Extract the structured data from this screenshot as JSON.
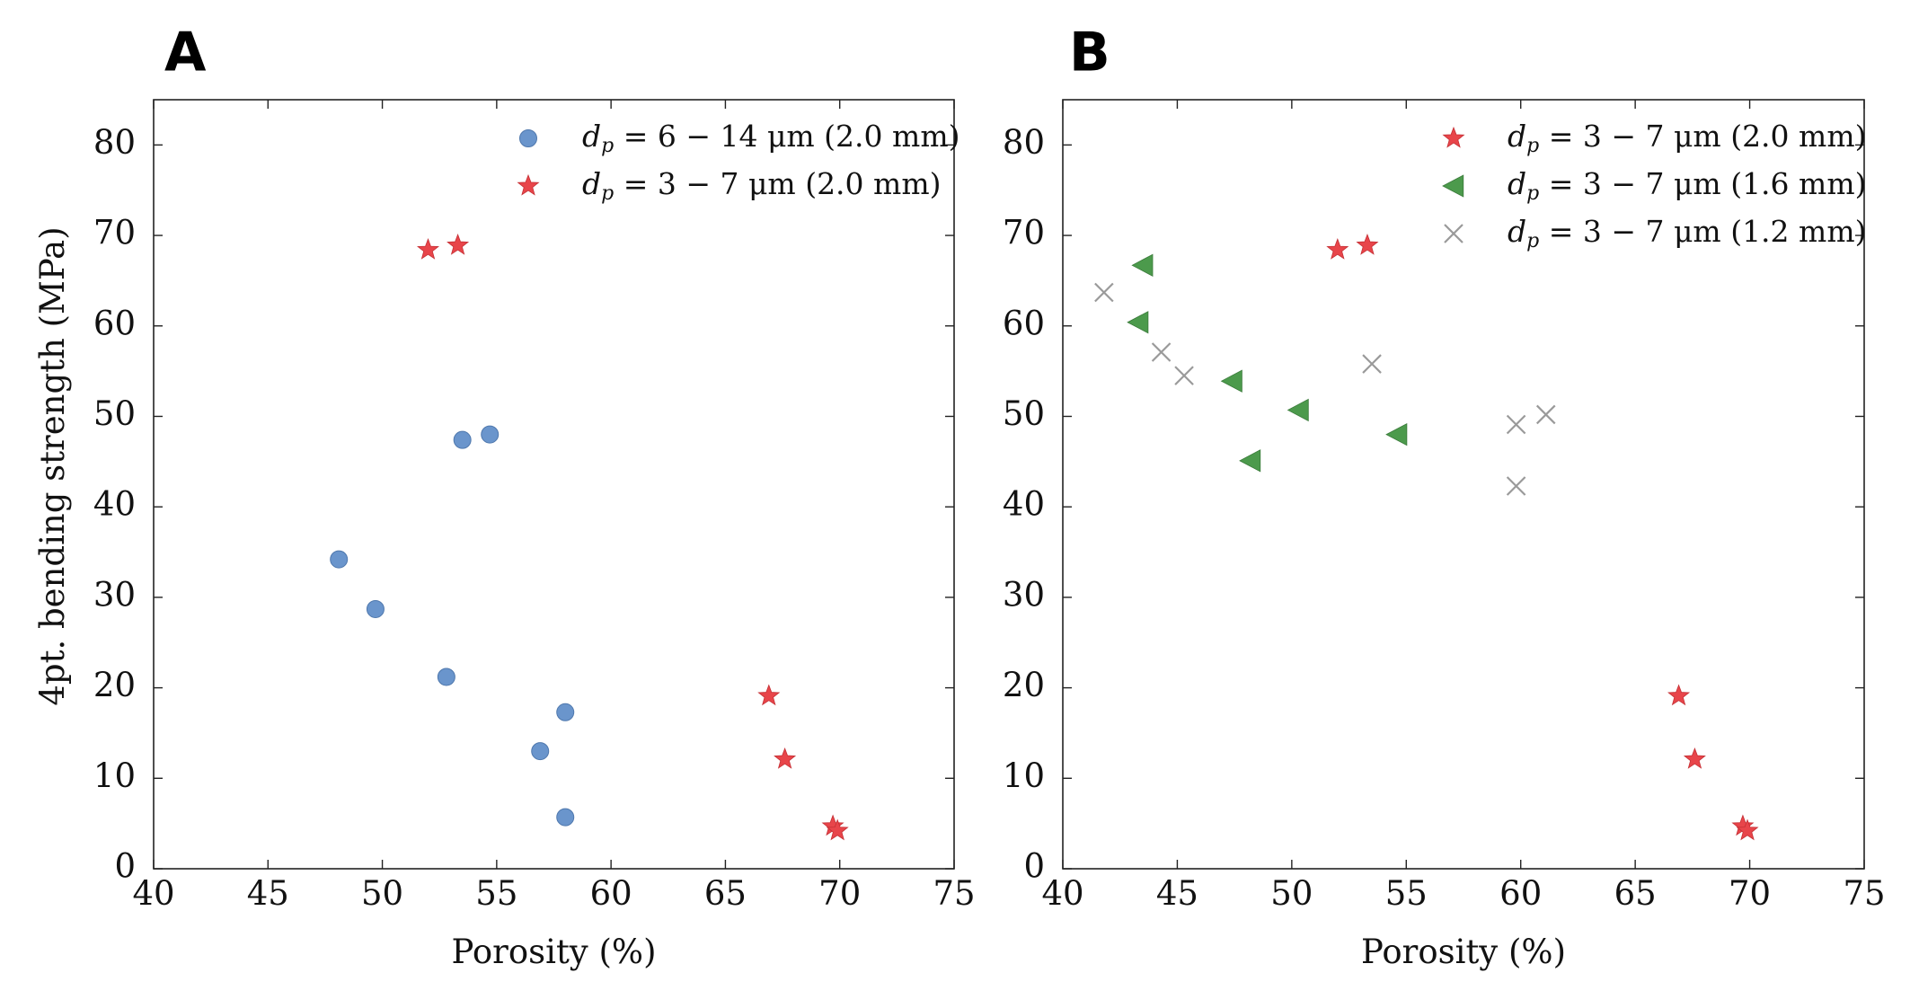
{
  "chart_data": [
    {
      "type": "scatter",
      "panel_label": "A",
      "xlabel": "Porosity (%)",
      "ylabel": "4pt. bending strength (MPa)",
      "xlim": [
        40,
        75
      ],
      "ylim": [
        0,
        85
      ],
      "xticks": [
        40,
        45,
        50,
        55,
        60,
        65,
        70,
        75
      ],
      "yticks": [
        0,
        10,
        20,
        30,
        40,
        50,
        60,
        70,
        80
      ],
      "grid": false,
      "legend_position": "top-right",
      "series": [
        {
          "name": "d_p = 6 − 14 μm (2.0 mm)",
          "legend_parts": {
            "symbol": "d",
            "sub": "p",
            "rest": " = 6 − 14 μm (2.0 mm)"
          },
          "marker": "circle",
          "color": "#6a95cc",
          "points": [
            [
              48.1,
              34.2
            ],
            [
              49.7,
              28.7
            ],
            [
              52.8,
              21.2
            ],
            [
              53.5,
              47.4
            ],
            [
              54.7,
              48.0
            ],
            [
              56.9,
              13.0
            ],
            [
              58.0,
              17.3
            ],
            [
              58.0,
              5.7
            ]
          ]
        },
        {
          "name": "d_p = 3 − 7 μm (2.0 mm)",
          "legend_parts": {
            "symbol": "d",
            "sub": "p",
            "rest": " = 3 − 7 μm (2.0 mm)"
          },
          "marker": "star",
          "color": "#e8454a",
          "points": [
            [
              52.0,
              68.4
            ],
            [
              53.3,
              68.9
            ],
            [
              66.9,
              19.1
            ],
            [
              67.6,
              12.1
            ],
            [
              69.7,
              4.7
            ],
            [
              69.9,
              4.2
            ]
          ]
        }
      ]
    },
    {
      "type": "scatter",
      "panel_label": "B",
      "xlabel": "Porosity (%)",
      "ylabel": "",
      "xlim": [
        40,
        75
      ],
      "ylim": [
        0,
        85
      ],
      "xticks": [
        40,
        45,
        50,
        55,
        60,
        65,
        70,
        75
      ],
      "yticks": [
        0,
        10,
        20,
        30,
        40,
        50,
        60,
        70,
        80
      ],
      "grid": false,
      "legend_position": "top-right",
      "series": [
        {
          "name": "d_p = 3 − 7 μm (2.0 mm)",
          "legend_parts": {
            "symbol": "d",
            "sub": "p",
            "rest": " = 3 − 7 μm (2.0 mm)"
          },
          "marker": "star",
          "color": "#e8454a",
          "points": [
            [
              52.0,
              68.4
            ],
            [
              53.3,
              68.9
            ],
            [
              66.9,
              19.1
            ],
            [
              67.6,
              12.1
            ],
            [
              69.7,
              4.7
            ],
            [
              69.9,
              4.2
            ]
          ]
        },
        {
          "name": "d_p = 3 − 7 μm (1.6 mm)",
          "legend_parts": {
            "symbol": "d",
            "sub": "p",
            "rest": " = 3 − 7 μm (1.6 mm)"
          },
          "marker": "triangle-left",
          "color": "#4c9a4c",
          "points": [
            [
              43.5,
              66.7
            ],
            [
              43.3,
              60.4
            ],
            [
              47.4,
              53.9
            ],
            [
              48.2,
              45.1
            ],
            [
              50.3,
              50.7
            ],
            [
              54.6,
              48.0
            ]
          ]
        },
        {
          "name": "d_p = 3 − 7 μm (1.2 mm)",
          "legend_parts": {
            "symbol": "d",
            "sub": "p",
            "rest": " = 3 − 7 μm (1.2 mm)"
          },
          "marker": "x",
          "color": "#9a9a9a",
          "points": [
            [
              41.8,
              63.7
            ],
            [
              44.3,
              57.1
            ],
            [
              45.3,
              54.5
            ],
            [
              53.5,
              55.8
            ],
            [
              59.8,
              49.1
            ],
            [
              59.8,
              42.3
            ],
            [
              61.1,
              50.2
            ]
          ]
        }
      ]
    }
  ]
}
